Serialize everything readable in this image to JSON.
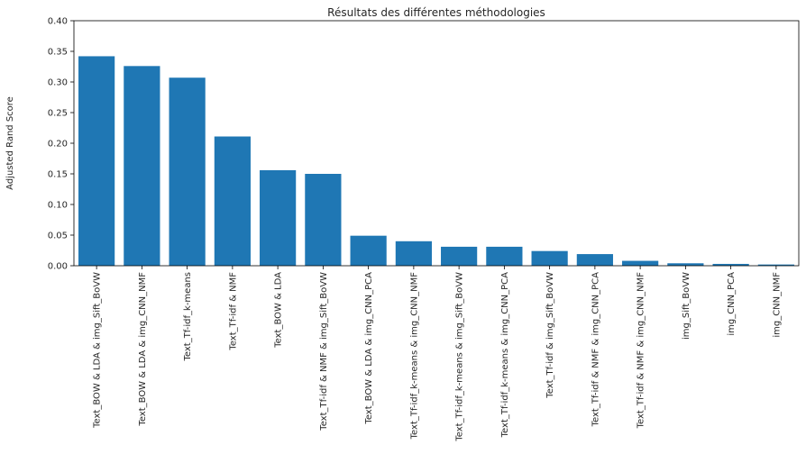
{
  "chart_data": {
    "type": "bar",
    "title": "Résultats des différentes méthodologies",
    "xlabel": "",
    "ylabel": "Adjusted Rand Score",
    "ylim": [
      0,
      0.4
    ],
    "yticks": [
      "0.00",
      "0.05",
      "0.10",
      "0.15",
      "0.20",
      "0.25",
      "0.30",
      "0.35",
      "0.40"
    ],
    "grid": false,
    "bar_color": "#1f77b4",
    "categories": [
      "Text_BOW & LDA & img_Sift_BoVW",
      "Text_BOW & LDA & img_CNN_NMF",
      "Text_Tf-idf_k-means",
      "Text_Tf-idf & NMF",
      "Text_BOW & LDA",
      "Text_Tf-idf & NMF & img_Sift_BoVW",
      "Text_BOW & LDA & img_CNN_PCA",
      "Text_Tf-idf_k-means & img_CNN_NMF",
      "Text_Tf-idf_k-means & img_Sift_BoVW",
      "Text_Tf-idf_k-means & img_CNN_PCA",
      "Text_Tf-idf & img_Sift_BoVW",
      "Text_Tf-idf & NMF & img_CNN_PCA",
      "Text_Tf-idf & NMF & img_CNN_NMF",
      "img_Sift_BoVW",
      "img_CNN_PCA",
      "img_CNN_NMF"
    ],
    "values": [
      0.342,
      0.326,
      0.307,
      0.211,
      0.156,
      0.15,
      0.049,
      0.04,
      0.031,
      0.031,
      0.024,
      0.019,
      0.008,
      0.004,
      0.003,
      0.002
    ]
  }
}
